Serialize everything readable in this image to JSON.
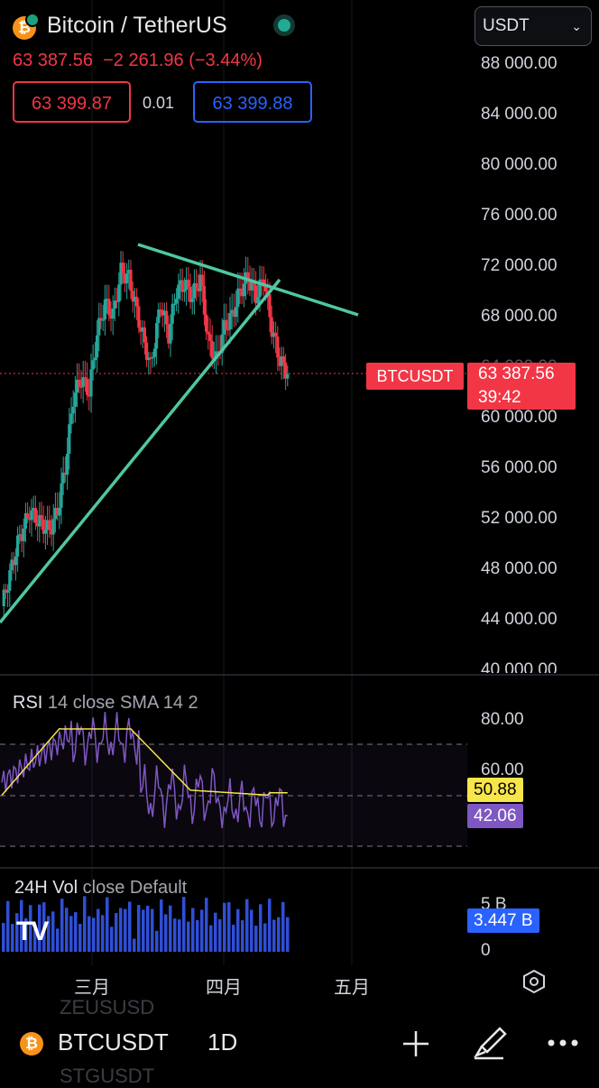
{
  "header": {
    "title": "Bitcoin / TetherUS",
    "coin_glyph": "₿",
    "last_price": "63 387.56",
    "change": "−2 261.96",
    "change_pct": "(−3.44%)",
    "bid": "63 399.87",
    "spread": "0.01",
    "ask": "63 399.88",
    "currency": "USDT"
  },
  "price_axis": [
    "88 000.00",
    "84 000.00",
    "80 000.00",
    "76 000.00",
    "72 000.00",
    "68 000.00",
    "64 000.00",
    "60 000.00",
    "56 000.00",
    "52 000.00",
    "48 000.00",
    "44 000.00",
    "40 000.00"
  ],
  "price_tag": {
    "symbol": "BTCUSDT",
    "price": "63 387.56",
    "countdown": "39:42"
  },
  "rsi": {
    "label": "RSI",
    "params": "14 close SMA 14 2",
    "axis": [
      "80.00",
      "60.00"
    ],
    "sma_value": "50.88",
    "rsi_value": "42.06",
    "rsi_color": "#7e57c2",
    "sma_color": "#f7e54a"
  },
  "volume": {
    "label": "24H Vol",
    "params": "close Default",
    "axis": [
      "5 B",
      "0"
    ],
    "value": "3.447 B",
    "logo": "TV"
  },
  "time_axis": [
    "三月",
    "四月",
    "五月"
  ],
  "bottom_bar": {
    "symbol": "BTCUSDT",
    "timeframe": "1D",
    "ghost_top": "ZEUSUSD",
    "ghost_bottom": "STGUSDT",
    "icons": [
      "plus-icon",
      "brush-icon",
      "more-icon",
      "settings-icon"
    ]
  },
  "colors": {
    "up": "#26a69a",
    "down": "#f23645",
    "trendline": "#4fc7a3",
    "bid": "#f23645",
    "ask": "#2962ff",
    "vol": "#2f4fd8"
  }
}
